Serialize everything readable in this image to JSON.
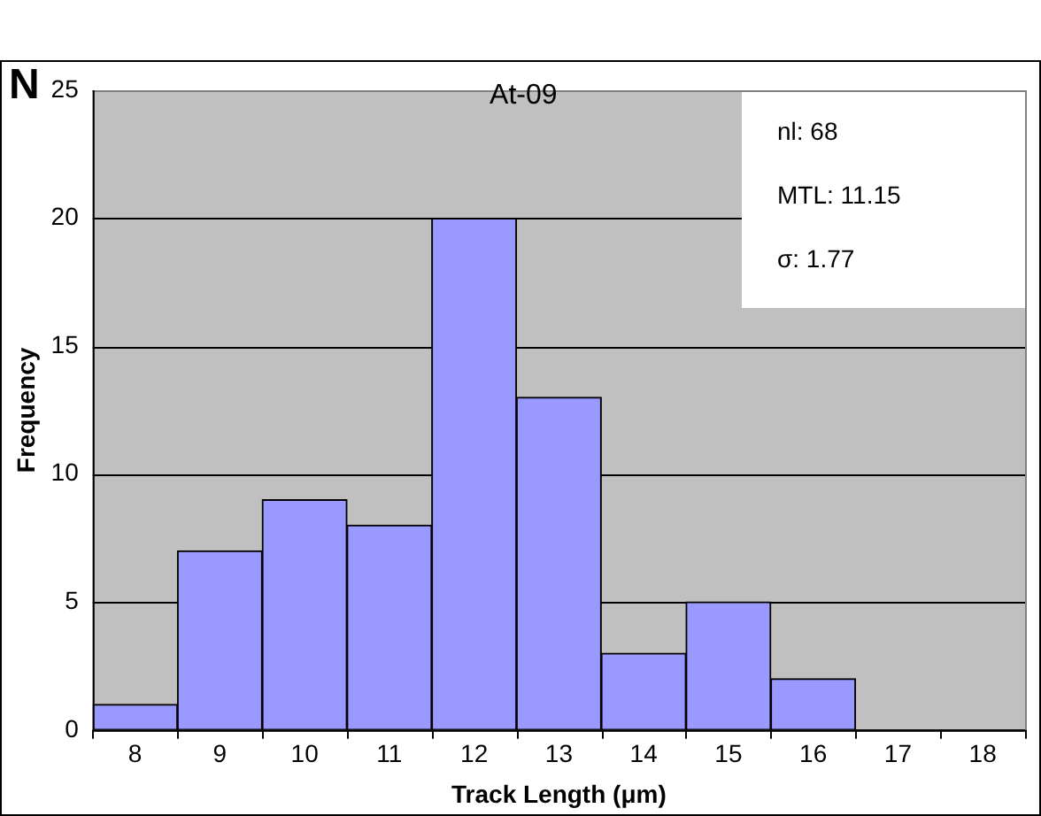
{
  "chart_data": {
    "type": "histogram",
    "title": "At-09",
    "xlabel": "Track Length (μm)",
    "ylabel": "Frequency",
    "bins": [
      7.5,
      8.5,
      9.5,
      10.5,
      11.5,
      12.5,
      13.5,
      14.5,
      15.5,
      16.5,
      17.5,
      18.5
    ],
    "values": [
      1,
      7,
      9,
      8,
      20,
      13,
      3,
      5,
      2,
      0,
      0
    ],
    "color": "#9999ff",
    "xlim": [
      7.5,
      18.5
    ],
    "xticks": [
      8,
      9,
      10,
      11,
      12,
      13,
      14,
      15,
      16,
      17,
      18
    ],
    "ylim": [
      0,
      25
    ],
    "yticks": [
      0,
      5,
      10,
      15,
      20,
      25
    ],
    "grid": "y",
    "annotations": [
      "N",
      "nl: 68",
      "MTL: 11.15",
      "σ: 1.77"
    ]
  }
}
